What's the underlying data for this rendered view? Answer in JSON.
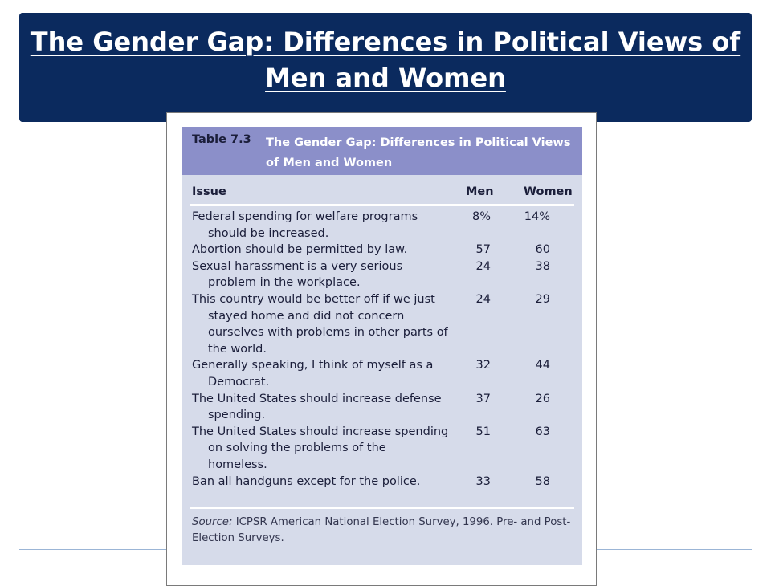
{
  "slide": {
    "title": "The Gender Gap: Differences in Political Views of Men and Women"
  },
  "table": {
    "number": "Table 7.3",
    "caption": "The Gender Gap: Differences in Political Views of Men and Women",
    "headers": {
      "issue": "Issue",
      "men": "Men",
      "women": "Women"
    },
    "rows": [
      {
        "issue": "Federal spending for welfare programs should be increased.",
        "men": "8%",
        "women": "14%"
      },
      {
        "issue": "Abortion should be permitted by law.",
        "men": "57",
        "women": "60"
      },
      {
        "issue": "Sexual harassment is a very serious problem in the workplace.",
        "men": "24",
        "women": "38"
      },
      {
        "issue": "This country would be better off if we just stayed home and did not concern ourselves with problems in other parts of the world.",
        "men": "24",
        "women": "29"
      },
      {
        "issue": "Generally speaking, I think of myself as a Democrat.",
        "men": "32",
        "women": "44"
      },
      {
        "issue": "The United States should increase defense spending.",
        "men": "37",
        "women": "26"
      },
      {
        "issue": "The United States should increase spending on solving the problems of the homeless.",
        "men": "51",
        "women": "63"
      },
      {
        "issue": "Ban all handguns except for the police.",
        "men": "33",
        "women": "58"
      }
    ],
    "source_label": "Source:",
    "source_text": "ICPSR American National Election Survey, 1996. Pre- and Post-Election Surveys."
  },
  "colors": {
    "header_band": "#0b2a5e",
    "table_head_bar": "#8b8fc9",
    "table_panel": "#d6dbea"
  }
}
